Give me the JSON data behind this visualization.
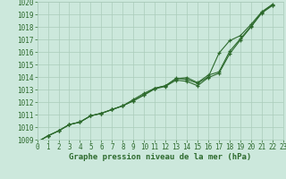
{
  "x": [
    0,
    1,
    2,
    3,
    4,
    5,
    6,
    7,
    8,
    9,
    10,
    11,
    12,
    13,
    14,
    15,
    16,
    17,
    18,
    19,
    20,
    21,
    22,
    23
  ],
  "line1": [
    1008.8,
    1009.3,
    1009.7,
    1010.2,
    1010.4,
    1010.9,
    1011.1,
    1011.4,
    1011.7,
    1012.2,
    1012.7,
    1013.1,
    1013.3,
    1013.9,
    1013.8,
    1013.5,
    1014.0,
    1015.9,
    1016.9,
    1017.3,
    1018.2,
    1019.2,
    1019.8,
    null
  ],
  "line2": [
    1008.8,
    1009.3,
    1009.7,
    1010.2,
    1010.4,
    1010.9,
    1011.1,
    1011.4,
    1011.7,
    1012.1,
    1012.6,
    1013.1,
    1013.3,
    1013.85,
    1013.95,
    1013.55,
    1014.15,
    1014.4,
    1016.05,
    1017.05,
    1018.05,
    1019.15,
    1019.75,
    null
  ],
  "line3": [
    1008.8,
    1009.3,
    1009.7,
    1010.2,
    1010.4,
    1010.9,
    1011.1,
    1011.4,
    1011.7,
    1012.1,
    1012.55,
    1013.05,
    1013.25,
    1013.75,
    1013.65,
    1013.3,
    1013.95,
    1014.3,
    1015.85,
    1016.95,
    1018.0,
    1019.1,
    1019.7,
    null
  ],
  "line_color": "#2d6a2d",
  "bg_color": "#cce8dc",
  "grid_color": "#aaccba",
  "xlabel": "Graphe pression niveau de la mer (hPa)",
  "ylim": [
    1009,
    1020
  ],
  "xlim": [
    0,
    23
  ],
  "yticks": [
    1009,
    1010,
    1011,
    1012,
    1013,
    1014,
    1015,
    1016,
    1017,
    1018,
    1019,
    1020
  ],
  "xticks": [
    0,
    1,
    2,
    3,
    4,
    5,
    6,
    7,
    8,
    9,
    10,
    11,
    12,
    13,
    14,
    15,
    16,
    17,
    18,
    19,
    20,
    21,
    22,
    23
  ],
  "tick_fontsize": 5.5,
  "xlabel_fontsize": 6.5,
  "marker_size": 3.5,
  "linewidth": 0.8
}
